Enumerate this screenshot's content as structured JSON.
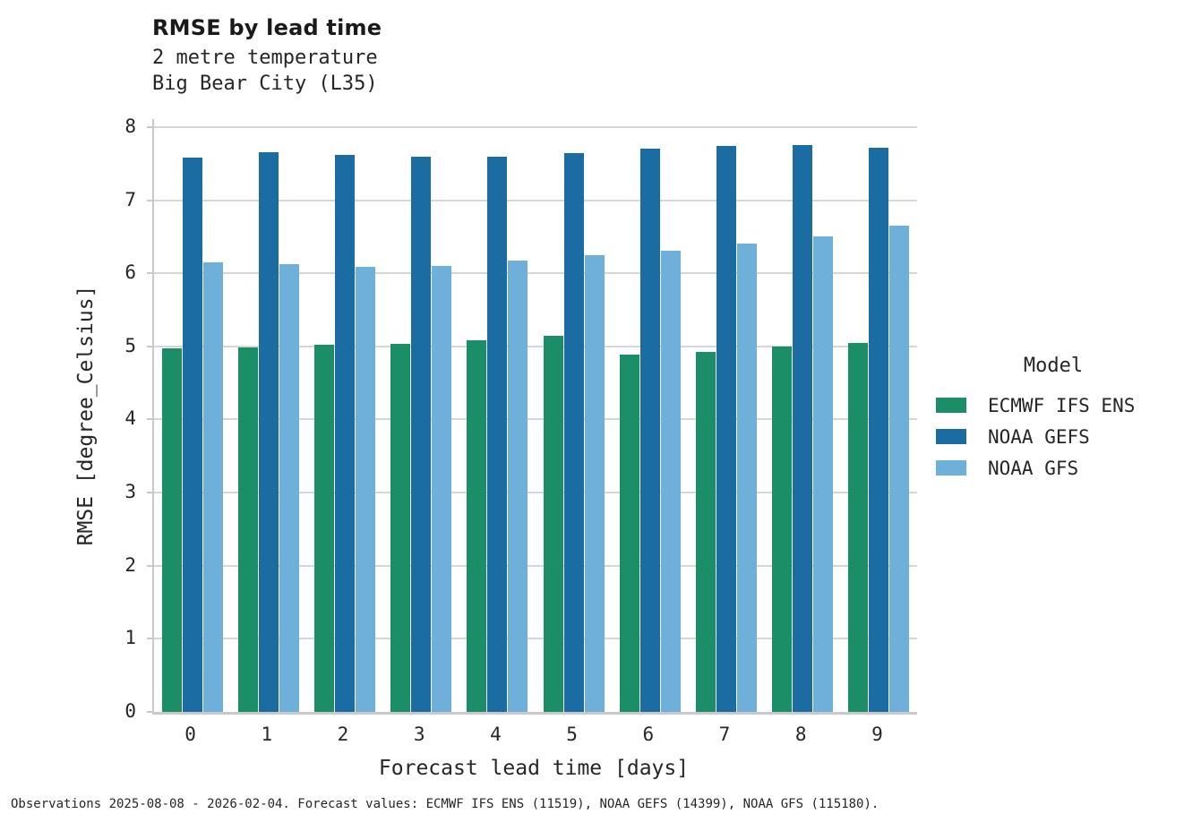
{
  "header": {
    "title": "RMSE by lead time",
    "subtitle_variable": "2 metre temperature",
    "subtitle_station": "Big Bear City (L35)"
  },
  "footer": {
    "text": "Observations 2025-08-08 - 2026-02-04. Forecast values: ECMWF IFS ENS (11519), NOAA GEFS (14399), NOAA GFS (115180)."
  },
  "colors": {
    "ecmwf_ifs_ens": "#1b8e68",
    "noaa_gefs": "#1b6ca3",
    "noaa_gfs": "#6fb0da",
    "gridline": "#d6d6d6",
    "axis_spine": "#c9c9c9",
    "text": "#262626"
  },
  "chart_data": {
    "type": "bar",
    "title": "RMSE by lead time",
    "subtitle": [
      "2 metre temperature",
      "Big Bear City (L35)"
    ],
    "categories": [
      "0",
      "1",
      "2",
      "3",
      "4",
      "5",
      "6",
      "7",
      "8",
      "9"
    ],
    "series": [
      {
        "name": "ECMWF IFS ENS",
        "color": "#1b8e68",
        "values": [
          4.97,
          4.99,
          5.02,
          5.03,
          5.08,
          5.15,
          4.89,
          4.93,
          5.0,
          5.05
        ]
      },
      {
        "name": "NOAA GEFS",
        "color": "#1b6ca3",
        "values": [
          7.58,
          7.66,
          7.62,
          7.6,
          7.6,
          7.65,
          7.71,
          7.74,
          7.75,
          7.72
        ]
      },
      {
        "name": "NOAA GFS",
        "color": "#6fb0da",
        "values": [
          6.15,
          6.12,
          6.09,
          6.1,
          6.18,
          6.25,
          6.31,
          6.41,
          6.5,
          6.65
        ]
      }
    ],
    "xlabel": "Forecast lead time [days]",
    "ylabel": "RMSE [degree_Celsius]",
    "ylim": [
      0,
      8
    ],
    "yticks": [
      0,
      1,
      2,
      3,
      4,
      5,
      6,
      7,
      8
    ],
    "grid": true,
    "legend_title": "Model",
    "legend_position": "right"
  }
}
